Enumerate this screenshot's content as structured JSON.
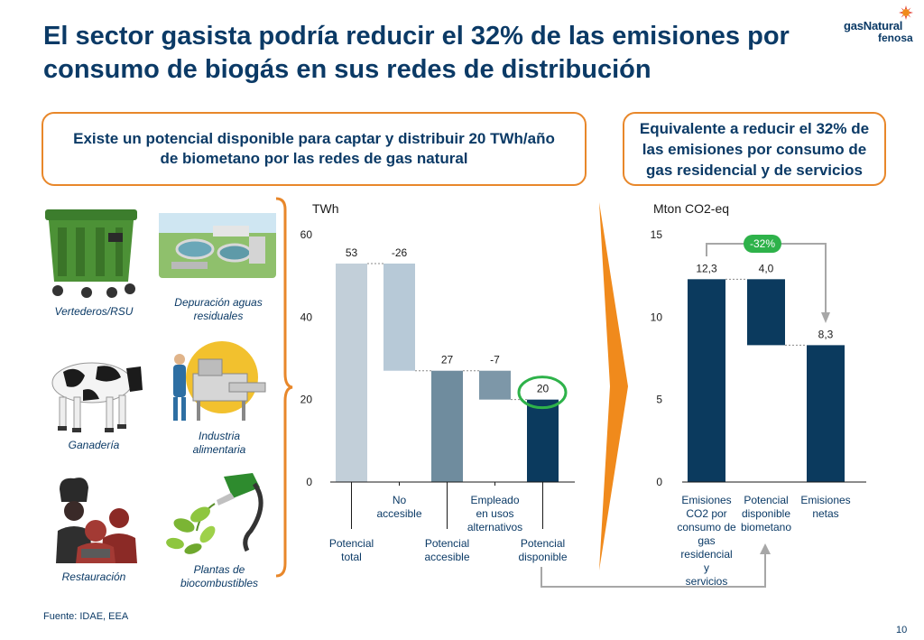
{
  "title": "El sector gasista podría reducir el 32% de las emisiones por consumo de biogás en sus redes de distribución",
  "logo": {
    "line1": "gasNatural",
    "line2": "fenosa"
  },
  "box_left": "Existe un potencial disponible para captar y distribuir 20 TWh/año de biometano por las redes de gas natural",
  "box_right": "Equivalente a reducir el 32% de las emisiones por consumo de gas residencial y de servicios",
  "sources": [
    {
      "label": "Vertederos/RSU",
      "icon": "waste-container-icon"
    },
    {
      "label": "Depuración aguas residuales",
      "icon": "water-treatment-plant-icon"
    },
    {
      "label": "Ganadería",
      "icon": "cow-icon"
    },
    {
      "label": "Industria alimentaria",
      "icon": "food-industry-worker-icon"
    },
    {
      "label": "Restauración",
      "icon": "chefs-icon"
    },
    {
      "label": "Plantas de biocombustibles",
      "icon": "biofuel-nozzle-icon"
    }
  ],
  "footer": {
    "source": "Fuente: IDAE, EEA",
    "page": "10"
  },
  "chart_data": [
    {
      "type": "bar",
      "subtype": "waterfall",
      "ylabel": "TWh",
      "ylim": [
        0,
        60
      ],
      "yticks": [
        0,
        20,
        40,
        60
      ],
      "categories": [
        "Potencial total",
        "No accesible",
        "Potencial accesible",
        "Empleado en usos alternativos",
        "Potencial disponible"
      ],
      "values": [
        53,
        -26,
        27,
        -7,
        20
      ],
      "value_labels": [
        "53",
        "-26",
        "27",
        "-7",
        "20"
      ],
      "bar_kinds": [
        "total",
        "delta",
        "total",
        "delta",
        "total"
      ],
      "colors": [
        "#c2cfd9",
        "#b7c9d7",
        "#6f8c9e",
        "#7d97a8",
        "#0b3a5e"
      ],
      "highlight": {
        "index": 4,
        "color": "#2eb24a"
      }
    },
    {
      "type": "bar",
      "subtype": "waterfall",
      "ylabel": "Mton CO2-eq",
      "ylim": [
        0,
        15
      ],
      "yticks": [
        0,
        5,
        10,
        15
      ],
      "categories": [
        "Emisiones CO2 por consumo de gas residencial y servicios",
        "Potencial disponible biometano",
        "Emisiones netas"
      ],
      "values": [
        12.3,
        -4.0,
        8.3
      ],
      "value_labels": [
        "12,3",
        "4,0",
        "8,3"
      ],
      "bar_kinds": [
        "total",
        "delta",
        "total"
      ],
      "colors": [
        "#0b3a5e",
        "#0b3a5e",
        "#0b3a5e"
      ],
      "badge": {
        "text": "-32%",
        "color": "#2eb24a"
      }
    }
  ]
}
